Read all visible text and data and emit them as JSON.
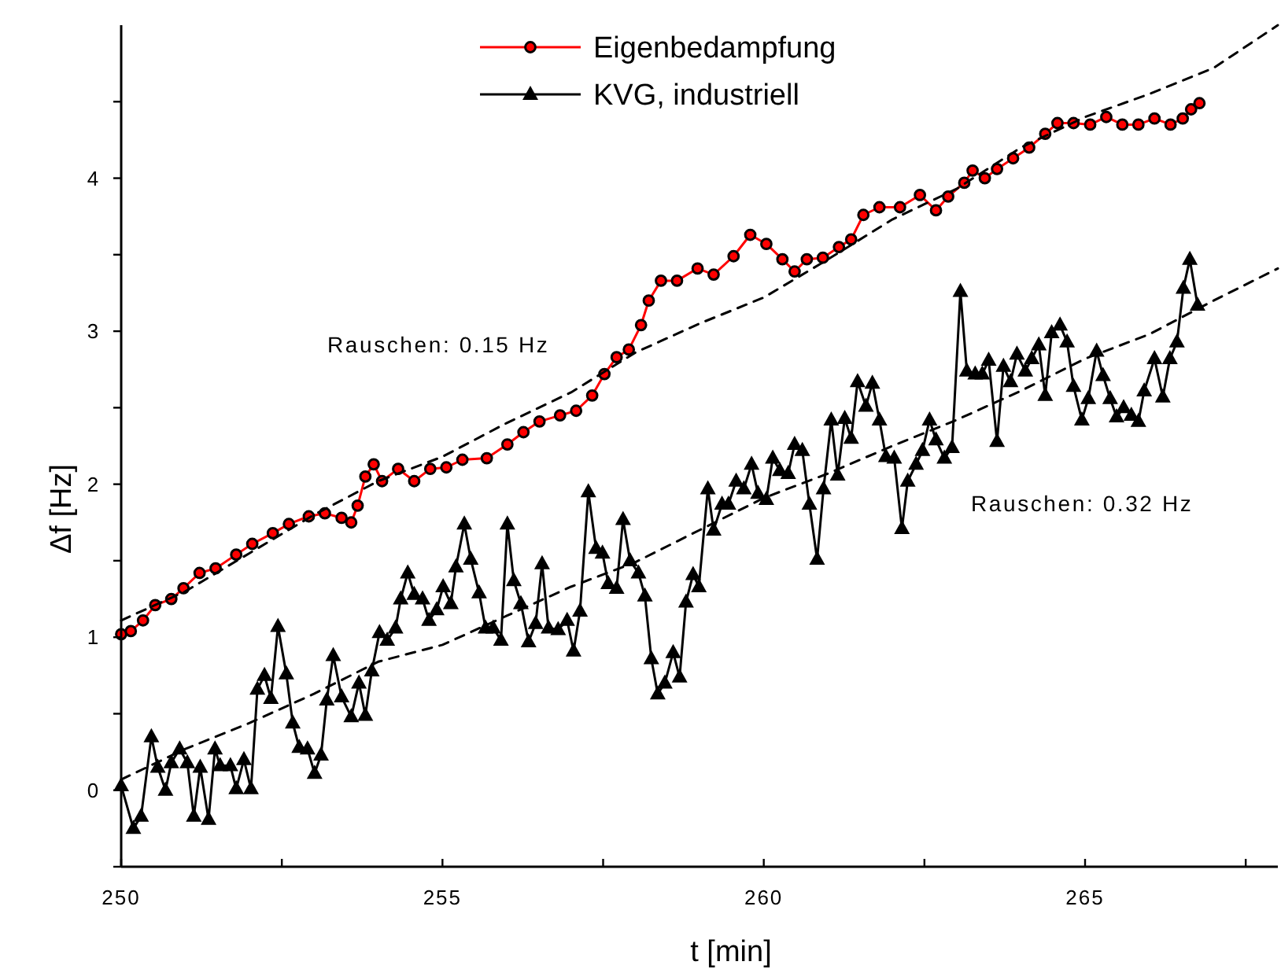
{
  "chart_data": {
    "type": "line",
    "xlabel": "t [min]",
    "ylabel": "Δf [Hz]",
    "xlim": [
      250,
      268
    ],
    "ylim": [
      -0.5,
      5
    ],
    "xticks": [
      250,
      {
        "value": 252.5,
        "label": null
      },
      255,
      {
        "value": 257.5,
        "label": null
      },
      260,
      {
        "value": 262.5,
        "label": null
      },
      265,
      {
        "value": 267.5,
        "label": null
      }
    ],
    "yticks": [
      {
        "value": -0.5,
        "label": null
      },
      0,
      {
        "value": 0.5,
        "label": null
      },
      1,
      {
        "value": 1.5,
        "label": null
      },
      2,
      {
        "value": 2.5,
        "label": null
      },
      3,
      {
        "value": 3.5,
        "label": null
      },
      4,
      {
        "value": 4.5,
        "label": null
      }
    ],
    "grid": false,
    "legend": "top",
    "annotations": [
      "Rauschen: 0.15 Hz",
      "Rauschen: 0.32 Hz"
    ],
    "series": [
      {
        "name": "Eigenbedampfung",
        "color": "#ff0000",
        "marker": "circle",
        "line_style": "solid",
        "x": [
          250,
          250.15,
          250.34,
          250.53,
          250.78,
          250.97,
          251.22,
          251.47,
          251.79,
          252.04,
          252.36,
          252.61,
          252.92,
          253.17,
          253.43,
          253.58,
          253.68,
          253.8,
          253.93,
          254.06,
          254.31,
          254.56,
          254.81,
          255.06,
          255.31,
          255.69,
          256.01,
          256.26,
          256.51,
          256.83,
          257.08,
          257.33,
          257.52,
          257.71,
          257.9,
          258.09,
          258.21,
          258.4,
          258.65,
          258.97,
          259.22,
          259.53,
          259.79,
          260.04,
          260.29,
          260.48,
          260.67,
          260.92,
          261.17,
          261.36,
          261.55,
          261.8,
          262.12,
          262.43,
          262.68,
          262.87,
          263.12,
          263.25,
          263.44,
          263.63,
          263.88,
          264.13,
          264.38,
          264.57,
          264.82,
          265.08,
          265.33,
          265.58,
          265.83,
          266.08,
          266.33,
          266.52,
          266.65,
          266.78
        ],
        "values": [
          1.02,
          1.04,
          1.11,
          1.21,
          1.25,
          1.32,
          1.42,
          1.45,
          1.54,
          1.61,
          1.68,
          1.74,
          1.79,
          1.81,
          1.78,
          1.75,
          1.86,
          2.05,
          2.13,
          2.02,
          2.1,
          2.02,
          2.1,
          2.11,
          2.16,
          2.17,
          2.26,
          2.34,
          2.41,
          2.45,
          2.48,
          2.58,
          2.72,
          2.83,
          2.88,
          3.04,
          3.2,
          3.33,
          3.33,
          3.41,
          3.37,
          3.49,
          3.63,
          3.57,
          3.47,
          3.39,
          3.47,
          3.48,
          3.55,
          3.6,
          3.76,
          3.81,
          3.81,
          3.89,
          3.79,
          3.88,
          3.97,
          4.05,
          4.0,
          4.06,
          4.13,
          4.2,
          4.29,
          4.36,
          4.36,
          4.35,
          4.4,
          4.35,
          4.35,
          4.39,
          4.35,
          4.39,
          4.45,
          4.49
        ]
      },
      {
        "name": "KVG, industriell",
        "color": "#000000",
        "marker": "triangle",
        "line_style": "solid",
        "x": [
          250.0,
          250.19,
          250.31,
          250.47,
          250.57,
          250.69,
          250.78,
          250.91,
          251.03,
          251.13,
          251.23,
          251.36,
          251.46,
          251.54,
          251.7,
          251.79,
          251.91,
          252.02,
          252.12,
          252.23,
          252.33,
          252.44,
          252.57,
          252.67,
          252.77,
          252.9,
          253.01,
          253.11,
          253.2,
          253.3,
          253.43,
          253.58,
          253.7,
          253.8,
          253.9,
          254.02,
          254.14,
          254.27,
          254.35,
          254.46,
          254.56,
          254.69,
          254.79,
          254.91,
          255.01,
          255.13,
          255.21,
          255.34,
          255.44,
          255.57,
          255.67,
          255.79,
          255.91,
          256.01,
          256.11,
          256.22,
          256.34,
          256.45,
          256.55,
          256.65,
          256.8,
          256.94,
          257.04,
          257.14,
          257.27,
          257.39,
          257.49,
          257.58,
          257.71,
          257.81,
          257.92,
          258.05,
          258.15,
          258.25,
          258.35,
          258.46,
          258.59,
          258.69,
          258.79,
          258.9,
          258.99,
          259.13,
          259.22,
          259.35,
          259.45,
          259.57,
          259.69,
          259.81,
          259.91,
          260.04,
          260.14,
          260.25,
          260.38,
          260.48,
          260.6,
          260.71,
          260.83,
          260.93,
          261.05,
          261.15,
          261.26,
          261.36,
          261.46,
          261.59,
          261.69,
          261.8,
          261.9,
          262.03,
          262.15,
          262.24,
          262.37,
          262.47,
          262.58,
          262.68,
          262.81,
          262.93,
          263.06,
          263.16,
          263.29,
          263.4,
          263.5,
          263.63,
          263.73,
          263.84,
          263.94,
          264.07,
          264.17,
          264.28,
          264.38,
          264.48,
          264.61,
          264.72,
          264.82,
          264.95,
          265.05,
          265.18,
          265.28,
          265.39,
          265.49,
          265.6,
          265.72,
          265.83,
          265.92,
          266.08,
          266.21,
          266.32,
          266.43,
          266.53,
          266.63,
          266.75
        ],
        "values": [
          0.03,
          -0.25,
          -0.17,
          0.35,
          0.15,
          0.0,
          0.18,
          0.27,
          0.18,
          -0.17,
          0.15,
          -0.19,
          0.27,
          0.16,
          0.16,
          0.01,
          0.2,
          0.01,
          0.66,
          0.75,
          0.6,
          1.07,
          0.76,
          0.44,
          0.28,
          0.27,
          0.11,
          0.23,
          0.59,
          0.88,
          0.61,
          0.48,
          0.7,
          0.49,
          0.78,
          1.03,
          0.98,
          1.06,
          1.25,
          1.42,
          1.28,
          1.25,
          1.11,
          1.18,
          1.33,
          1.22,
          1.46,
          1.74,
          1.51,
          1.29,
          1.06,
          1.06,
          0.98,
          1.74,
          1.37,
          1.22,
          0.97,
          1.09,
          1.48,
          1.06,
          1.05,
          1.11,
          0.91,
          1.17,
          1.95,
          1.58,
          1.55,
          1.35,
          1.32,
          1.77,
          1.5,
          1.42,
          1.27,
          0.86,
          0.63,
          0.7,
          0.9,
          0.74,
          1.23,
          1.41,
          1.33,
          1.97,
          1.7,
          1.87,
          1.87,
          2.02,
          1.97,
          2.13,
          1.94,
          1.9,
          2.17,
          2.09,
          2.07,
          2.26,
          2.22,
          1.87,
          1.51,
          1.97,
          2.42,
          2.06,
          2.43,
          2.3,
          2.67,
          2.51,
          2.66,
          2.42,
          2.18,
          2.17,
          1.71,
          2.02,
          2.13,
          2.22,
          2.42,
          2.29,
          2.17,
          2.24,
          3.26,
          2.74,
          2.72,
          2.72,
          2.81,
          2.28,
          2.77,
          2.67,
          2.85,
          2.74,
          2.82,
          2.91,
          2.58,
          2.99,
          3.04,
          2.93,
          2.64,
          2.42,
          2.56,
          2.87,
          2.71,
          2.56,
          2.44,
          2.5,
          2.45,
          2.41,
          2.61,
          2.82,
          2.57,
          2.82,
          2.93,
          3.28,
          3.47,
          3.17
        ]
      },
      {
        "color": "#000000",
        "marker": "none",
        "line_style": "dashed",
        "x": [
          250,
          251,
          252,
          253,
          254,
          255,
          256,
          257,
          258,
          259,
          260,
          261,
          262,
          263,
          264,
          265,
          266,
          267,
          268
        ],
        "values": [
          1.11,
          1.3,
          1.55,
          1.8,
          2.02,
          2.18,
          2.4,
          2.6,
          2.86,
          3.05,
          3.22,
          3.47,
          3.73,
          3.93,
          4.2,
          4.4,
          4.55,
          4.72,
          5.0
        ]
      },
      {
        "color": "#000000",
        "marker": "none",
        "line_style": "dashed",
        "x": [
          250,
          251,
          252,
          253,
          254,
          255,
          256,
          257,
          258,
          259,
          260,
          261,
          262,
          263,
          264,
          265,
          266,
          267,
          268
        ],
        "values": [
          0.07,
          0.27,
          0.44,
          0.63,
          0.84,
          0.95,
          1.14,
          1.33,
          1.49,
          1.7,
          1.91,
          2.07,
          2.25,
          2.42,
          2.61,
          2.82,
          2.98,
          3.2,
          3.41
        ]
      }
    ]
  }
}
